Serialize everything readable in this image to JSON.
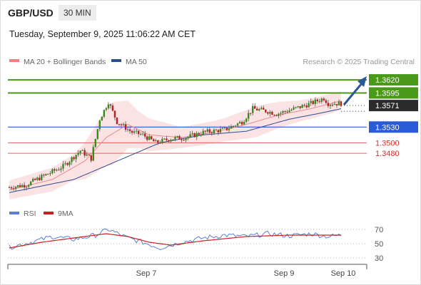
{
  "header": {
    "symbol": "GBP/USD",
    "timeframe": "30 MIN",
    "datetime": "Tuesday, September 9, 2025 11:06:22 AM CET"
  },
  "chart_data": [
    {
      "type": "candlestick",
      "legend": [
        {
          "label": "MA 20 + Bollinger Bands",
          "color": "#f08080"
        },
        {
          "label": "MA 50",
          "color": "#2b4d8c"
        }
      ],
      "credit": "Research © 2025 Trading Central",
      "ylim": [
        1.3385,
        1.365
      ],
      "x_ticks": [
        "Sep 7",
        "Sep 9",
        "Sep 10"
      ],
      "current_price": {
        "label": "1.3571",
        "value": 1.3571
      },
      "levels": [
        {
          "label": "1.3620",
          "value": 1.362,
          "kind": "resistance-target"
        },
        {
          "label": "1.3595",
          "value": 1.3595,
          "kind": "resistance"
        },
        {
          "label": "1.3530",
          "value": 1.353,
          "kind": "pivot"
        },
        {
          "label": "1.3500",
          "value": 1.35,
          "kind": "support"
        },
        {
          "label": "1.3480",
          "value": 1.348,
          "kind": "support"
        }
      ],
      "arrow": {
        "direction": "up",
        "color": "#2b5797"
      },
      "close_anchors": [
        [
          0,
          1.3415
        ],
        [
          8,
          1.342
        ],
        [
          15,
          1.3435
        ],
        [
          25,
          1.3455
        ],
        [
          33,
          1.3485
        ],
        [
          38,
          1.347
        ],
        [
          42,
          1.3545
        ],
        [
          46,
          1.3578
        ],
        [
          50,
          1.354
        ],
        [
          57,
          1.352
        ],
        [
          62,
          1.3515
        ],
        [
          68,
          1.35
        ],
        [
          75,
          1.3508
        ],
        [
          82,
          1.351
        ],
        [
          90,
          1.352
        ],
        [
          100,
          1.3525
        ],
        [
          108,
          1.354
        ],
        [
          113,
          1.3565
        ],
        [
          120,
          1.356
        ],
        [
          124,
          1.3555
        ],
        [
          130,
          1.3562
        ],
        [
          140,
          1.3575
        ],
        [
          146,
          1.3585
        ],
        [
          148,
          1.3575
        ],
        [
          154,
          1.3575
        ]
      ],
      "ma20_anchors": [
        [
          0,
          1.341
        ],
        [
          20,
          1.343
        ],
        [
          35,
          1.3465
        ],
        [
          45,
          1.351
        ],
        [
          55,
          1.3535
        ],
        [
          65,
          1.3515
        ],
        [
          80,
          1.351
        ],
        [
          95,
          1.352
        ],
        [
          110,
          1.3535
        ],
        [
          125,
          1.3553
        ],
        [
          140,
          1.3565
        ],
        [
          154,
          1.358
        ]
      ],
      "ma50_anchors": [
        [
          0,
          1.3405
        ],
        [
          30,
          1.343
        ],
        [
          50,
          1.3465
        ],
        [
          70,
          1.35
        ],
        [
          90,
          1.3515
        ],
        [
          110,
          1.3522
        ],
        [
          130,
          1.3545
        ],
        [
          145,
          1.3557
        ],
        [
          154,
          1.3565
        ]
      ],
      "band_width_anchors": [
        [
          0,
          0.0018
        ],
        [
          30,
          0.0025
        ],
        [
          40,
          0.0045
        ],
        [
          48,
          0.006
        ],
        [
          60,
          0.0035
        ],
        [
          80,
          0.002
        ],
        [
          100,
          0.0022
        ],
        [
          115,
          0.003
        ],
        [
          135,
          0.002
        ],
        [
          154,
          0.0018
        ]
      ]
    },
    {
      "type": "line",
      "legend": [
        {
          "label": "RSI",
          "color": "#5b7fd6"
        },
        {
          "label": "9MA",
          "color": "#cc2020"
        }
      ],
      "ylim": [
        25,
        78
      ],
      "y_ticks": [
        {
          "label": "70",
          "value": 70
        },
        {
          "label": "50",
          "value": 50
        },
        {
          "label": "30",
          "value": 30
        }
      ],
      "rsi_anchors": [
        [
          0,
          45
        ],
        [
          10,
          52
        ],
        [
          20,
          60
        ],
        [
          30,
          56
        ],
        [
          40,
          62
        ],
        [
          46,
          70
        ],
        [
          55,
          58
        ],
        [
          62,
          52
        ],
        [
          70,
          44
        ],
        [
          80,
          52
        ],
        [
          90,
          58
        ],
        [
          100,
          62
        ],
        [
          110,
          60
        ],
        [
          120,
          64
        ],
        [
          130,
          61
        ],
        [
          140,
          64
        ],
        [
          148,
          60
        ],
        [
          154,
          62
        ]
      ],
      "ma9_anchors": [
        [
          0,
          44
        ],
        [
          15,
          52
        ],
        [
          30,
          58
        ],
        [
          45,
          64
        ],
        [
          55,
          60
        ],
        [
          65,
          52
        ],
        [
          75,
          48
        ],
        [
          90,
          54
        ],
        [
          110,
          60
        ],
        [
          130,
          62
        ],
        [
          154,
          62
        ]
      ]
    }
  ]
}
